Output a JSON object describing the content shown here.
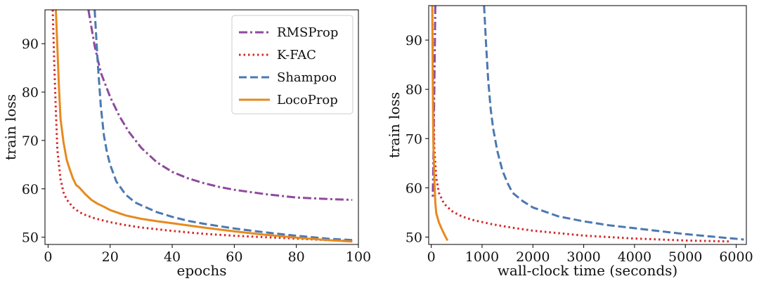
{
  "chart_data": [
    {
      "type": "line",
      "xlabel": "epochs",
      "ylabel": "train loss",
      "xlim": [
        -1,
        100
      ],
      "ylim": [
        48.5,
        97
      ],
      "xticks": [
        0,
        20,
        40,
        60,
        80,
        100
      ],
      "yticks": [
        50,
        60,
        70,
        80,
        90
      ],
      "legend": {
        "position": "top-right",
        "entries": [
          "RMSProp",
          "K-FAC",
          "Shampoo",
          "LocoProp"
        ]
      },
      "series": [
        {
          "name": "RMSProp",
          "color": "#8e4a9c",
          "dash": "dashdot",
          "x": [
            13,
            15,
            17,
            20,
            23,
            26,
            30,
            35,
            40,
            45,
            50,
            55,
            60,
            70,
            80,
            90,
            98
          ],
          "y": [
            97,
            89.5,
            84,
            79,
            75,
            71.8,
            68.5,
            65.5,
            63.5,
            62.2,
            61.2,
            60.4,
            59.8,
            58.9,
            58.2,
            57.9,
            57.7
          ]
        },
        {
          "name": "K-FAC",
          "color": "#d62728",
          "dash": "dotted",
          "x": [
            1.5,
            2,
            2.5,
            3,
            4,
            5,
            6,
            8,
            10,
            12,
            15,
            20,
            25,
            30,
            40,
            50,
            60,
            70,
            80,
            90,
            98
          ],
          "y": [
            97,
            86,
            76,
            68,
            62,
            59.2,
            57.8,
            56.2,
            55.2,
            54.6,
            53.9,
            53.1,
            52.5,
            52,
            51.3,
            50.7,
            50.3,
            50,
            49.7,
            49.4,
            49.2
          ]
        },
        {
          "name": "Shampoo",
          "color": "#4c78b0",
          "dash": "dashed",
          "x": [
            15,
            16,
            17,
            18,
            19,
            20,
            22,
            25,
            28,
            30,
            35,
            40,
            45,
            50,
            60,
            70,
            80,
            90,
            98
          ],
          "y": [
            97,
            86,
            77,
            71,
            67.5,
            65,
            61.5,
            58.8,
            57.2,
            56.6,
            55.2,
            54.2,
            53.4,
            52.8,
            51.8,
            51,
            50.3,
            49.7,
            49.4
          ]
        },
        {
          "name": "LocoProp",
          "color": "#e68a1f",
          "dash": "solid",
          "x": [
            2.5,
            3,
            3.5,
            4,
            5,
            6,
            7,
            8,
            9,
            10,
            12,
            14,
            16,
            18,
            20,
            25,
            30,
            35,
            40,
            50,
            60,
            70,
            80,
            90,
            98
          ],
          "y": [
            97,
            89,
            81,
            74.5,
            69.5,
            66,
            64,
            62.2,
            60.8,
            60.3,
            58.9,
            57.7,
            56.9,
            56.3,
            55.6,
            54.5,
            53.8,
            53.3,
            52.9,
            52,
            51.2,
            50.5,
            49.9,
            49.4,
            49.1
          ]
        }
      ]
    },
    {
      "type": "line",
      "xlabel": "wall-clock time (seconds)",
      "ylabel": "train loss",
      "xlim": [
        -50,
        6200
      ],
      "ylim": [
        48.5,
        97
      ],
      "xticks": [
        0,
        1000,
        2000,
        3000,
        4000,
        5000,
        6000
      ],
      "yticks": [
        50,
        60,
        70,
        80,
        90
      ],
      "series": [
        {
          "name": "RMSProp",
          "color": "#8e4a9c",
          "dash": "dashdot",
          "x": [
            80,
            70,
            60,
            50,
            40,
            30
          ],
          "y": [
            97,
            88,
            80,
            72,
            64,
            58
          ]
        },
        {
          "name": "K-FAC",
          "color": "#d62728",
          "dash": "dotted",
          "x": [
            20,
            40,
            60,
            100,
            150,
            250,
            400,
            600,
            800,
            1200,
            1600,
            2000,
            3000,
            4000,
            5000,
            5900
          ],
          "y": [
            97,
            78,
            68,
            62,
            59,
            56.8,
            55.3,
            54.2,
            53.5,
            52.6,
            51.9,
            51.3,
            50.3,
            49.7,
            49.3,
            49.1
          ]
        },
        {
          "name": "Shampoo",
          "color": "#4c78b0",
          "dash": "dashed",
          "x": [
            1040,
            1080,
            1120,
            1170,
            1220,
            1300,
            1400,
            1500,
            1600,
            1800,
            2000,
            2200,
            2500,
            3000,
            3500,
            4000,
            5000,
            6150
          ],
          "y": [
            97,
            89,
            82,
            76,
            72,
            67.5,
            63.5,
            61,
            59,
            57.3,
            56,
            55.3,
            54.2,
            53.2,
            52.4,
            51.8,
            50.6,
            49.5
          ]
        },
        {
          "name": "LocoProp",
          "color": "#e68a1f",
          "dash": "solid",
          "x": [
            20,
            30,
            40,
            60,
            80,
            100,
            150,
            200,
            260,
            320
          ],
          "y": [
            97,
            82,
            70,
            62,
            57,
            54.8,
            53,
            51.8,
            50.5,
            49.3
          ]
        }
      ]
    }
  ]
}
